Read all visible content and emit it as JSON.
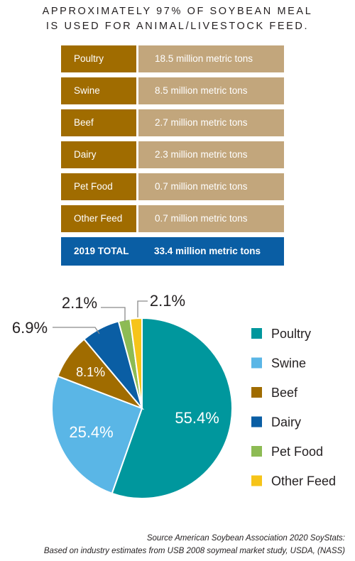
{
  "title": {
    "line1": "APPROXIMATELY 97% OF SOYBEAN MEAL",
    "line2": "IS USED FOR ANIMAL/LIVESTOCK FEED."
  },
  "table": {
    "rows": [
      {
        "category": "Poultry",
        "amount": "18.5 million metric tons"
      },
      {
        "category": "Swine",
        "amount": "8.5 million metric tons"
      },
      {
        "category": "Beef",
        "amount": "2.7 million metric tons"
      },
      {
        "category": "Dairy",
        "amount": "2.3 million metric tons"
      },
      {
        "category": "Pet Food",
        "amount": "0.7 million metric tons"
      },
      {
        "category": "Other Feed",
        "amount": "0.7 million metric tons"
      }
    ],
    "total_label": "2019 TOTAL",
    "total_value": "33.4 million metric tons",
    "colors": {
      "label_cell": "#a06c00",
      "value_cell": "#c2a67c",
      "total_row": "#0a5ea4"
    }
  },
  "chart_data": {
    "type": "pie",
    "labels": [
      "Poultry",
      "Swine",
      "Beef",
      "Dairy",
      "Pet Food",
      "Other Feed"
    ],
    "values": [
      55.4,
      25.4,
      8.1,
      6.9,
      2.1,
      2.1
    ],
    "value_labels": [
      "55.4%",
      "25.4%",
      "8.1%",
      "6.9%",
      "2.1%",
      "2.1%"
    ],
    "colors": [
      "#00979d",
      "#5ab6e6",
      "#a06c00",
      "#0a5ea4",
      "#8dbb54",
      "#f6c419"
    ],
    "legend_placement": "right",
    "start": "top, clockwise"
  },
  "source": {
    "line1": "Source American Soybean Association 2020 SoyStats:",
    "line2": "Based on industry estimates from USB 2008 soymeal market study, USDA, (NASS)"
  }
}
